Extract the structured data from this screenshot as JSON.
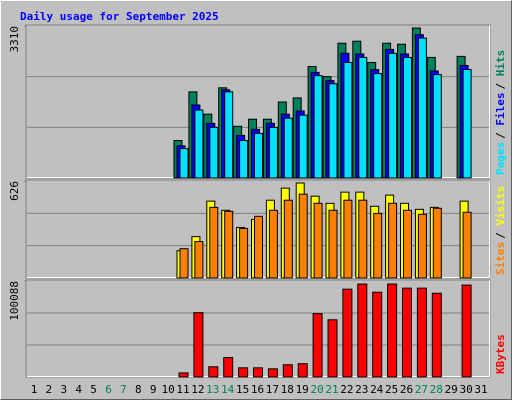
{
  "chart_data": [
    {
      "type": "bar",
      "title": "Daily usage for September 2025",
      "categories": [
        "1",
        "2",
        "3",
        "4",
        "5",
        "6",
        "7",
        "8",
        "9",
        "10",
        "11",
        "12",
        "13",
        "14",
        "15",
        "16",
        "17",
        "18",
        "19",
        "20",
        "21",
        "22",
        "23",
        "24",
        "25",
        "26",
        "27",
        "28",
        "29",
        "30",
        "31"
      ],
      "ylim": [
        0,
        3310
      ],
      "yticks": [
        3310
      ],
      "legend_separator": "/",
      "series": [
        {
          "name": "Hits",
          "color": "#00805c",
          "values": [
            null,
            null,
            null,
            null,
            null,
            null,
            null,
            null,
            null,
            null,
            816,
            1876,
            1390,
            1964,
            1126,
            1280,
            1280,
            1655,
            1744,
            2428,
            2207,
            2935,
            2979,
            2516,
            2935,
            2913,
            3266,
            2626,
            null,
            2648,
            null
          ]
        },
        {
          "name": "Files",
          "color": "#0000ff",
          "values": [
            null,
            null,
            null,
            null,
            null,
            null,
            null,
            null,
            null,
            null,
            700,
            1589,
            1190,
            1920,
            927,
            1060,
            1190,
            1390,
            1460,
            2300,
            2120,
            2715,
            2700,
            2360,
            2800,
            2700,
            3120,
            2330,
            null,
            2450,
            null
          ]
        },
        {
          "name": "Pages",
          "color": "#00e0ff",
          "values": [
            null,
            null,
            null,
            null,
            null,
            null,
            null,
            null,
            null,
            null,
            640,
            1479,
            1103,
            1876,
            816,
            971,
            1103,
            1302,
            1368,
            2229,
            2052,
            2516,
            2626,
            2273,
            2715,
            2626,
            3046,
            2251,
            null,
            2362,
            null
          ]
        }
      ]
    },
    {
      "type": "bar",
      "categories": [
        "1",
        "2",
        "3",
        "4",
        "5",
        "6",
        "7",
        "8",
        "9",
        "10",
        "11",
        "12",
        "13",
        "14",
        "15",
        "16",
        "17",
        "18",
        "19",
        "20",
        "21",
        "22",
        "23",
        "24",
        "25",
        "26",
        "27",
        "28",
        "29",
        "30",
        "31"
      ],
      "ylim": [
        0,
        626
      ],
      "yticks": [
        626
      ],
      "legend_separator": "/",
      "series": [
        {
          "name": "Visits",
          "color": "#ffff00",
          "values": [
            null,
            null,
            null,
            null,
            null,
            null,
            null,
            null,
            null,
            null,
            176,
            267,
            496,
            437,
            326,
            378,
            502,
            580,
            613,
            528,
            482,
            554,
            554,
            463,
            535,
            482,
            443,
            456,
            null,
            496,
            null
          ]
        },
        {
          "name": "Sites",
          "color": "#ff8000",
          "values": [
            null,
            null,
            null,
            null,
            null,
            null,
            null,
            null,
            null,
            null,
            189,
            235,
            456,
            430,
            320,
            398,
            437,
            502,
            541,
            482,
            437,
            502,
            502,
            417,
            482,
            437,
            411,
            450,
            null,
            424,
            null
          ]
        }
      ]
    },
    {
      "type": "bar",
      "categories": [
        "1",
        "2",
        "3",
        "4",
        "5",
        "6",
        "7",
        "8",
        "9",
        "10",
        "11",
        "12",
        "13",
        "14",
        "15",
        "16",
        "17",
        "18",
        "19",
        "20",
        "21",
        "22",
        "23",
        "24",
        "25",
        "26",
        "27",
        "28",
        "29",
        "30",
        "31"
      ],
      "ylim": [
        0,
        100088
      ],
      "yticks": [
        100088
      ],
      "highlight_color": "#00805c",
      "highlighted_categories": [
        "6",
        "7",
        "13",
        "14",
        "20",
        "21",
        "27",
        "28"
      ],
      "series": [
        {
          "name": "KBytes",
          "color": "#ff0000",
          "values": [
            null,
            null,
            null,
            null,
            null,
            null,
            null,
            null,
            null,
            null,
            4260,
            67100,
            10650,
            20230,
            9580,
            9580,
            8520,
            12780,
            13840,
            66030,
            59640,
            91590,
            96910,
            88390,
            96910,
            92650,
            92650,
            87330,
            null,
            95850,
            null
          ]
        }
      ]
    }
  ]
}
